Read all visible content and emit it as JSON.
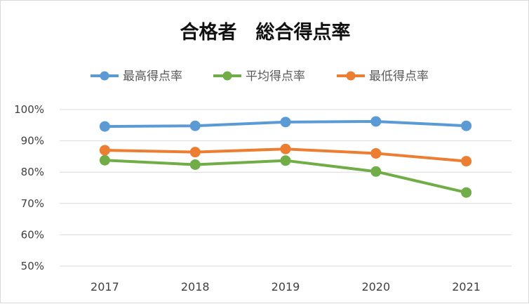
{
  "chart_data": {
    "type": "line",
    "title": "合格者　総合得点率",
    "xlabel": "",
    "ylabel": "",
    "categories": [
      "2017",
      "2018",
      "2019",
      "2020",
      "2021"
    ],
    "ylim": [
      0.5,
      1.0
    ],
    "yticks": [
      1.0,
      0.9,
      0.8,
      0.7,
      0.6,
      0.5
    ],
    "ytick_labels": [
      "100%",
      "90%",
      "80%",
      "70%",
      "60%",
      "50%"
    ],
    "grid": true,
    "legend_position": "top",
    "series": [
      {
        "name": "最高得点率",
        "color": "#5b9bd5",
        "values": [
          0.946,
          0.948,
          0.96,
          0.962,
          0.948
        ]
      },
      {
        "name": "平均得点率",
        "color": "#70ad47",
        "values": [
          0.838,
          0.824,
          0.837,
          0.802,
          0.735
        ]
      },
      {
        "name": "最低得点率",
        "color": "#ed7d31",
        "values": [
          0.87,
          0.864,
          0.874,
          0.86,
          0.835
        ]
      }
    ]
  }
}
